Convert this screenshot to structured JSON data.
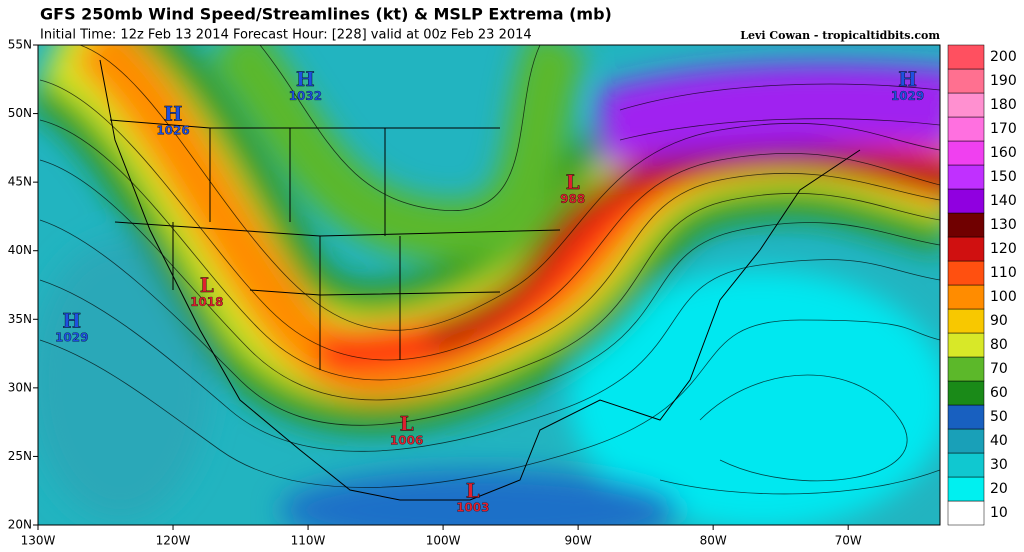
{
  "header": {
    "title": "GFS 250mb Wind Speed/Streamlines (kt) & MSLP Extrema (mb)",
    "subtitle": "Initial Time: 12z Feb 13 2014 Forecast Hour: [228] valid at 00z Feb 23 2014",
    "credit": "Levi Cowan - tropicaltidbits.com"
  },
  "map": {
    "lonlim": [
      -130,
      -63.2
    ],
    "latlim": [
      20,
      55
    ],
    "lon_ticks": [
      {
        "value": -130,
        "label": "130W"
      },
      {
        "value": -120,
        "label": "120W"
      },
      {
        "value": -110,
        "label": "110W"
      },
      {
        "value": -100,
        "label": "100W"
      },
      {
        "value": -90,
        "label": "90W"
      },
      {
        "value": -80,
        "label": "80W"
      },
      {
        "value": -70,
        "label": "70W"
      }
    ],
    "lat_ticks": [
      {
        "value": 20,
        "label": "20N"
      },
      {
        "value": 25,
        "label": "25N"
      },
      {
        "value": 30,
        "label": "30N"
      },
      {
        "value": 35,
        "label": "35N"
      },
      {
        "value": 40,
        "label": "40N"
      },
      {
        "value": 45,
        "label": "45N"
      },
      {
        "value": 50,
        "label": "50N"
      },
      {
        "value": 55,
        "label": "55N"
      }
    ],
    "pressure_centers": [
      {
        "kind": "H",
        "value": 1026,
        "lon": -120.0,
        "lat": 49.9
      },
      {
        "kind": "H",
        "value": 1032,
        "lon": -110.2,
        "lat": 52.4
      },
      {
        "kind": "H",
        "value": 1029,
        "lon": -65.6,
        "lat": 52.4
      },
      {
        "kind": "H",
        "value": 1029,
        "lon": -127.5,
        "lat": 34.8
      },
      {
        "kind": "L",
        "value": 988,
        "lon": -90.4,
        "lat": 44.9
      },
      {
        "kind": "L",
        "value": 1018,
        "lon": -117.5,
        "lat": 37.4
      },
      {
        "kind": "L",
        "value": 1006,
        "lon": -102.7,
        "lat": 27.3
      },
      {
        "kind": "L",
        "value": 1003,
        "lon": -97.8,
        "lat": 22.4
      }
    ],
    "high_color": "#1e50e0",
    "low_color": "#e02030"
  },
  "colorbar": [
    {
      "value": 10,
      "color": "#ffffff"
    },
    {
      "value": 20,
      "color": "#00f0f0"
    },
    {
      "value": 30,
      "color": "#10c8d0"
    },
    {
      "value": 40,
      "color": "#19a0b8"
    },
    {
      "value": 50,
      "color": "#1860c0"
    },
    {
      "value": 60,
      "color": "#1a8a18"
    },
    {
      "value": 70,
      "color": "#5cb82a"
    },
    {
      "value": 80,
      "color": "#d8e828"
    },
    {
      "value": 90,
      "color": "#f8c800"
    },
    {
      "value": 100,
      "color": "#ff8c00"
    },
    {
      "value": 110,
      "color": "#ff5010"
    },
    {
      "value": 120,
      "color": "#d01010"
    },
    {
      "value": 130,
      "color": "#700000"
    },
    {
      "value": 140,
      "color": "#9000e0"
    },
    {
      "value": 150,
      "color": "#c030ff"
    },
    {
      "value": 160,
      "color": "#f040f0"
    },
    {
      "value": 170,
      "color": "#ff70e0"
    },
    {
      "value": 180,
      "color": "#ff90d0"
    },
    {
      "value": 190,
      "color": "#ff7090"
    },
    {
      "value": 200,
      "color": "#ff5060"
    }
  ]
}
